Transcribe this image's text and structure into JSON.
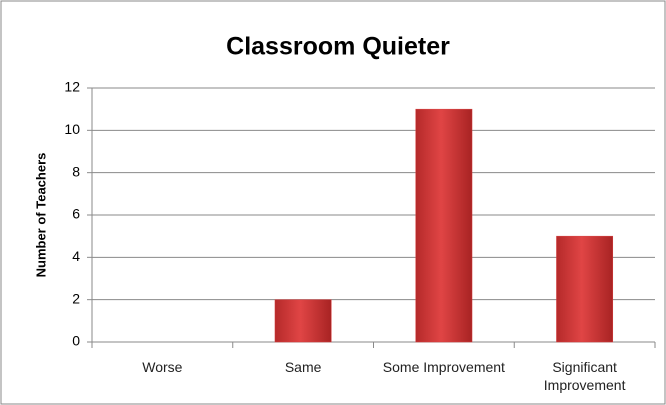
{
  "chart_data": {
    "type": "bar",
    "title": "Classroom Quieter",
    "y_label": "Number of Teachers",
    "categories": [
      "Worse",
      "Same",
      "Some Improvement",
      "Significant Improvement"
    ],
    "values": [
      0,
      2,
      11,
      5
    ],
    "color": "#d63c3c",
    "ylim": [
      0,
      12
    ],
    "yticks": [
      0,
      2,
      4,
      6,
      8,
      10,
      12
    ],
    "grid": true
  }
}
